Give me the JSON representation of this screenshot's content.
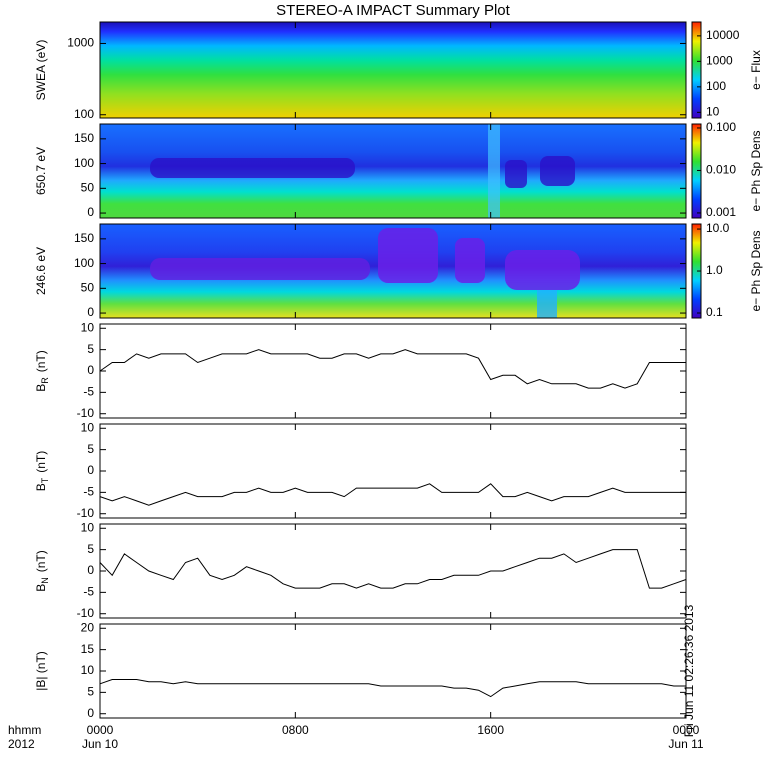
{
  "chart_data": [
    {
      "type": "heatmap",
      "title": "STEREO-A IMPACT Summary Plot",
      "ylabel": "SWEA (eV)",
      "ylim": [
        90,
        2000
      ],
      "ylog": true,
      "yticks": [
        100,
        1000
      ],
      "xlim": [
        0,
        24
      ],
      "colorbar_label": "e− Flux",
      "clim": [
        6,
        35000
      ],
      "clog": true,
      "cticks": [
        10,
        100,
        1000,
        10000
      ]
    },
    {
      "type": "heatmap",
      "ylabel": "650.7 eV",
      "ylim": [
        -10,
        180
      ],
      "yticks": [
        0,
        50,
        100,
        150
      ],
      "xlim": [
        0,
        24
      ],
      "colorbar_label": "e− Ph Sp Dens",
      "clim": [
        0.00076,
        0.124
      ],
      "clog": true,
      "cticks": [
        {
          "value": 0.001,
          "label": "0.001"
        },
        {
          "value": 0.01,
          "label": "0.010"
        },
        {
          "value": 0.1,
          "label": "0.100"
        }
      ]
    },
    {
      "type": "heatmap",
      "ylabel": "246.6 eV",
      "ylim": [
        -10,
        180
      ],
      "yticks": [
        0,
        50,
        100,
        150
      ],
      "xlim": [
        0,
        24
      ],
      "colorbar_label": "e− Ph Sp Dens",
      "clim": [
        0.076,
        13.2
      ],
      "clog": true,
      "cticks": [
        0.1,
        {
          "value": 1,
          "label": "1.0"
        },
        {
          "value": 10,
          "label": "10.0"
        }
      ]
    },
    {
      "type": "line",
      "ylabel": "B",
      "ylabel_sub": "R",
      "ylabel_unit": "(nT)",
      "ylim": [
        -11,
        11
      ],
      "yticks": [
        -10,
        -5,
        0,
        5,
        10
      ],
      "xlim": [
        0,
        24
      ],
      "color": "#000000",
      "x": [
        0,
        0.5,
        1,
        1.5,
        2,
        2.5,
        3,
        3.5,
        4,
        4.5,
        5,
        5.5,
        6,
        6.5,
        7,
        7.5,
        8,
        8.5,
        9,
        9.5,
        10,
        10.5,
        11,
        11.5,
        12,
        12.5,
        13,
        13.5,
        14,
        14.5,
        15,
        15.5,
        16,
        16.5,
        17,
        17.5,
        18,
        18.5,
        19,
        19.5,
        20,
        20.5,
        21,
        21.5,
        22,
        22.5,
        23,
        23.5,
        24
      ],
      "values": [
        0,
        2,
        2,
        4,
        3,
        4,
        4,
        4,
        2,
        3,
        4,
        4,
        4,
        5,
        4,
        4,
        4,
        4,
        3,
        3,
        4,
        4,
        3,
        4,
        4,
        5,
        4,
        4,
        4,
        4,
        4,
        3,
        -2,
        -1,
        -1,
        -3,
        -2,
        -3,
        -3,
        -3,
        -4,
        -4,
        -3,
        -4,
        -3,
        2,
        2,
        2,
        2
      ]
    },
    {
      "type": "line",
      "ylabel": "B",
      "ylabel_sub": "T",
      "ylabel_unit": "(nT)",
      "ylim": [
        -11,
        11
      ],
      "yticks": [
        -10,
        -5,
        0,
        5,
        10
      ],
      "xlim": [
        0,
        24
      ],
      "color": "#000000",
      "x": [
        0,
        0.5,
        1,
        1.5,
        2,
        2.5,
        3,
        3.5,
        4,
        4.5,
        5,
        5.5,
        6,
        6.5,
        7,
        7.5,
        8,
        8.5,
        9,
        9.5,
        10,
        10.5,
        11,
        11.5,
        12,
        12.5,
        13,
        13.5,
        14,
        14.5,
        15,
        15.5,
        16,
        16.5,
        17,
        17.5,
        18,
        18.5,
        19,
        19.5,
        20,
        20.5,
        21,
        21.5,
        22,
        22.5,
        23,
        23.5,
        24
      ],
      "values": [
        -6,
        -7,
        -6,
        -7,
        -8,
        -7,
        -6,
        -5,
        -6,
        -6,
        -6,
        -5,
        -5,
        -4,
        -5,
        -5,
        -4,
        -5,
        -5,
        -5,
        -6,
        -4,
        -4,
        -4,
        -4,
        -4,
        -4,
        -3,
        -5,
        -5,
        -5,
        -5,
        -3,
        -6,
        -6,
        -5,
        -6,
        -7,
        -6,
        -6,
        -6,
        -5,
        -4,
        -5,
        -5,
        -5,
        -5,
        -5,
        -5
      ]
    },
    {
      "type": "line",
      "ylabel": "B",
      "ylabel_sub": "N",
      "ylabel_unit": "(nT)",
      "ylim": [
        -11,
        11
      ],
      "yticks": [
        -10,
        -5,
        0,
        5,
        10
      ],
      "xlim": [
        0,
        24
      ],
      "color": "#000000",
      "x": [
        0,
        0.5,
        1,
        1.5,
        2,
        2.5,
        3,
        3.5,
        4,
        4.5,
        5,
        5.5,
        6,
        6.5,
        7,
        7.5,
        8,
        8.5,
        9,
        9.5,
        10,
        10.5,
        11,
        11.5,
        12,
        12.5,
        13,
        13.5,
        14,
        14.5,
        15,
        15.5,
        16,
        16.5,
        17,
        17.5,
        18,
        18.5,
        19,
        19.5,
        20,
        20.5,
        21,
        21.5,
        22,
        22.5,
        23,
        23.5,
        24
      ],
      "values": [
        2,
        -1,
        4,
        2,
        0,
        -1,
        -2,
        2,
        3,
        -1,
        -2,
        -1,
        1,
        0,
        -1,
        -3,
        -4,
        -4,
        -4,
        -3,
        -3,
        -4,
        -3,
        -4,
        -4,
        -3,
        -3,
        -2,
        -2,
        -1,
        -1,
        -1,
        0,
        0,
        1,
        2,
        3,
        3,
        4,
        2,
        3,
        4,
        5,
        5,
        5,
        -4,
        -4,
        -3,
        -2
      ]
    },
    {
      "type": "line",
      "ylabel": "|B| (nT)",
      "ylim": [
        -1,
        21
      ],
      "yticks": [
        0,
        5,
        10,
        15,
        20
      ],
      "xlim": [
        0,
        24
      ],
      "color": "#000000",
      "x": [
        0,
        0.5,
        1,
        1.5,
        2,
        2.5,
        3,
        3.5,
        4,
        4.5,
        5,
        5.5,
        6,
        6.5,
        7,
        7.5,
        8,
        8.5,
        9,
        9.5,
        10,
        10.5,
        11,
        11.5,
        12,
        12.5,
        13,
        13.5,
        14,
        14.5,
        15,
        15.5,
        16,
        16.5,
        17,
        17.5,
        18,
        18.5,
        19,
        19.5,
        20,
        20.5,
        21,
        21.5,
        22,
        22.5,
        23,
        23.5,
        24
      ],
      "values": [
        7,
        8,
        8,
        8,
        7.5,
        7.5,
        7,
        7.5,
        7,
        7,
        7,
        7,
        7,
        7,
        7,
        7,
        7,
        7,
        7,
        7,
        7,
        7,
        7,
        6.5,
        6.5,
        6.5,
        6.5,
        6.5,
        6.5,
        6,
        6,
        5.5,
        4,
        6,
        6.5,
        7,
        7.5,
        7.5,
        7.5,
        7.5,
        7,
        7,
        7,
        7,
        7,
        7,
        7,
        6.5,
        6.5
      ],
      "xticks": [
        {
          "value": 0,
          "label": "0000"
        },
        {
          "value": 8,
          "label": "0800"
        },
        {
          "value": 16,
          "label": "1600"
        },
        {
          "value": 24,
          "label": "0000"
        }
      ],
      "date_labels": [
        "Jun 10",
        "Jun 11"
      ],
      "xlabel": "hhmm",
      "year_label": "2012",
      "annotation": "Fri Jun 11 02:26:36 2013"
    }
  ]
}
